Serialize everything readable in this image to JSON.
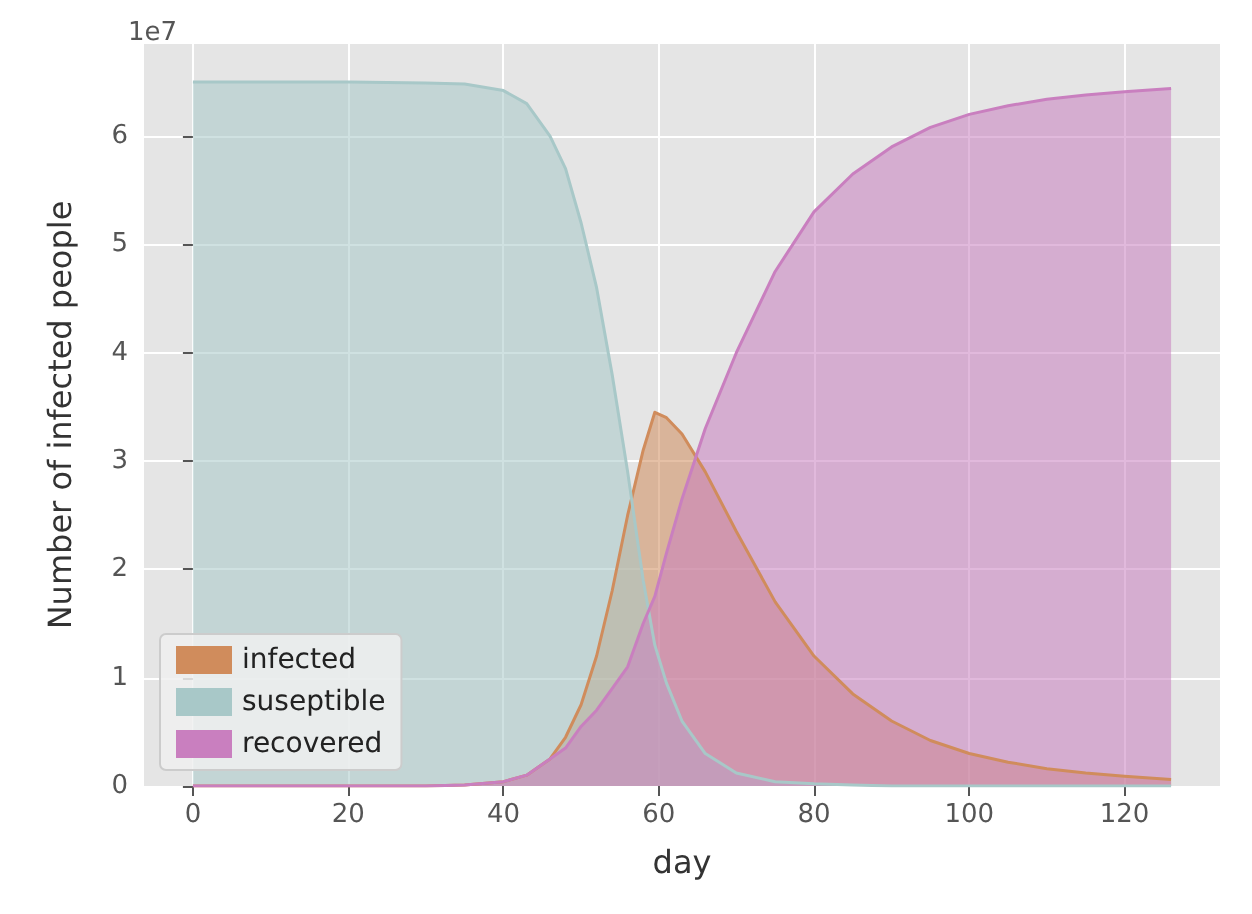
{
  "chart_data": {
    "type": "area",
    "xlabel": "day",
    "ylabel": "Number of infected people",
    "annotations": [
      "1e7"
    ],
    "x": [
      0,
      10,
      20,
      30,
      35,
      40,
      43,
      46,
      48,
      50,
      52,
      54,
      56,
      58,
      59.5,
      61,
      63,
      66,
      70,
      75,
      80,
      85,
      90,
      95,
      100,
      105,
      110,
      115,
      120,
      126
    ],
    "series": [
      {
        "name": "infected",
        "color": "#d08c5c",
        "values": [
          0,
          0,
          0,
          0,
          0.01,
          0.04,
          0.1,
          0.25,
          0.45,
          0.75,
          1.2,
          1.8,
          2.5,
          3.1,
          3.45,
          3.4,
          3.25,
          2.9,
          2.35,
          1.7,
          1.2,
          0.85,
          0.6,
          0.42,
          0.3,
          0.22,
          0.16,
          0.12,
          0.09,
          0.06
        ]
      },
      {
        "name": "suseptible",
        "color": "#a8c8c8",
        "values": [
          6.5,
          6.5,
          6.5,
          6.49,
          6.48,
          6.42,
          6.3,
          6.0,
          5.7,
          5.2,
          4.6,
          3.8,
          2.9,
          1.9,
          1.3,
          0.95,
          0.6,
          0.3,
          0.12,
          0.04,
          0.02,
          0.01,
          0,
          0,
          0,
          0,
          0,
          0,
          0,
          0
        ]
      },
      {
        "name": "recovered",
        "color": "#c97fbf",
        "values": [
          0,
          0,
          0,
          0,
          0.01,
          0.04,
          0.1,
          0.25,
          0.35,
          0.55,
          0.7,
          0.9,
          1.1,
          1.5,
          1.75,
          2.15,
          2.65,
          3.3,
          4.0,
          4.75,
          5.3,
          5.65,
          5.9,
          6.08,
          6.2,
          6.28,
          6.34,
          6.38,
          6.41,
          6.44
        ]
      }
    ],
    "xlim": [
      -6.3,
      132.3
    ],
    "xticks": [
      0,
      20,
      40,
      60,
      80,
      100,
      120
    ],
    "ylim": [
      0,
      6.85
    ],
    "yticks": [
      0,
      1,
      2,
      3,
      4,
      5,
      6
    ],
    "grid": true,
    "legend": "bottom left"
  }
}
